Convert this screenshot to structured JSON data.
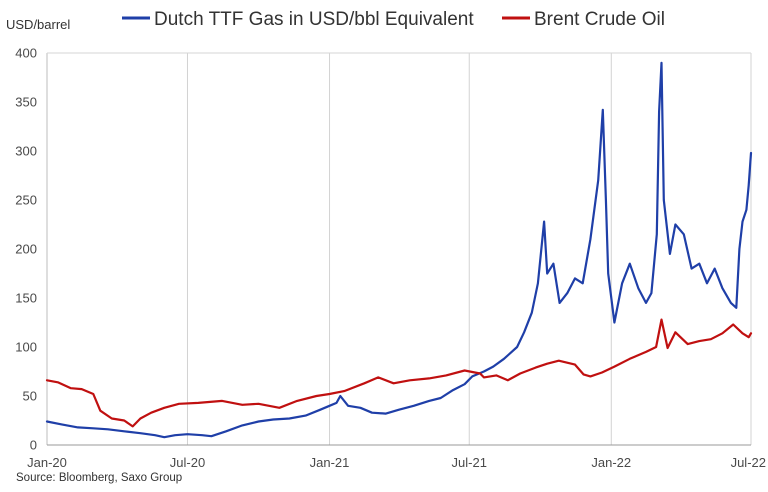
{
  "chart_data": {
    "type": "line",
    "ylabel": "USD/barrel",
    "source": "Source: Bloomberg, Saxo Group",
    "ylim": [
      0,
      400
    ],
    "yticks": [
      0,
      50,
      100,
      150,
      200,
      250,
      300,
      350,
      400
    ],
    "xrange": [
      "2020-01-01",
      "2022-07-01"
    ],
    "xticks": [
      {
        "date": "2020-01-01",
        "label": "Jan-20"
      },
      {
        "date": "2020-07-01",
        "label": "Jul-20"
      },
      {
        "date": "2021-01-01",
        "label": "Jan-21"
      },
      {
        "date": "2021-07-01",
        "label": "Jul-21"
      },
      {
        "date": "2022-01-01",
        "label": "Jan-22"
      },
      {
        "date": "2022-07-01",
        "label": "Jul-22"
      }
    ],
    "grid": {
      "vertical": true,
      "horizontal": false
    },
    "legend_position": "top",
    "series": [
      {
        "name": "Dutch TTF Gas in USD/bbl Equivalent",
        "color": "#1f3fa8",
        "points": [
          [
            "2020-01-01",
            24
          ],
          [
            "2020-01-20",
            21
          ],
          [
            "2020-02-10",
            18
          ],
          [
            "2020-03-01",
            17
          ],
          [
            "2020-03-20",
            16
          ],
          [
            "2020-04-10",
            14
          ],
          [
            "2020-05-01",
            12
          ],
          [
            "2020-05-20",
            10
          ],
          [
            "2020-06-01",
            8
          ],
          [
            "2020-06-15",
            10
          ],
          [
            "2020-07-01",
            11
          ],
          [
            "2020-07-20",
            10
          ],
          [
            "2020-08-01",
            9
          ],
          [
            "2020-08-20",
            14
          ],
          [
            "2020-09-10",
            20
          ],
          [
            "2020-10-01",
            24
          ],
          [
            "2020-10-20",
            26
          ],
          [
            "2020-11-10",
            27
          ],
          [
            "2020-12-01",
            30
          ],
          [
            "2020-12-20",
            36
          ],
          [
            "2021-01-01",
            40
          ],
          [
            "2021-01-10",
            43
          ],
          [
            "2021-01-15",
            50
          ],
          [
            "2021-01-25",
            40
          ],
          [
            "2021-02-10",
            38
          ],
          [
            "2021-02-25",
            33
          ],
          [
            "2021-03-15",
            32
          ],
          [
            "2021-04-01",
            36
          ],
          [
            "2021-04-20",
            40
          ],
          [
            "2021-05-10",
            45
          ],
          [
            "2021-05-25",
            48
          ],
          [
            "2021-06-10",
            56
          ],
          [
            "2021-06-25",
            62
          ],
          [
            "2021-07-05",
            70
          ],
          [
            "2021-07-20",
            75
          ],
          [
            "2021-08-01",
            80
          ],
          [
            "2021-08-15",
            88
          ],
          [
            "2021-09-01",
            100
          ],
          [
            "2021-09-10",
            115
          ],
          [
            "2021-09-20",
            135
          ],
          [
            "2021-09-28",
            165
          ],
          [
            "2021-10-06",
            228
          ],
          [
            "2021-10-10",
            175
          ],
          [
            "2021-10-18",
            185
          ],
          [
            "2021-10-26",
            145
          ],
          [
            "2021-11-05",
            155
          ],
          [
            "2021-11-15",
            170
          ],
          [
            "2021-11-25",
            165
          ],
          [
            "2021-12-05",
            210
          ],
          [
            "2021-12-15",
            270
          ],
          [
            "2021-12-21",
            342
          ],
          [
            "2021-12-25",
            250
          ],
          [
            "2021-12-28",
            175
          ],
          [
            "2022-01-05",
            125
          ],
          [
            "2022-01-15",
            165
          ],
          [
            "2022-01-25",
            185
          ],
          [
            "2022-02-05",
            160
          ],
          [
            "2022-02-15",
            145
          ],
          [
            "2022-02-22",
            155
          ],
          [
            "2022-03-01",
            215
          ],
          [
            "2022-03-04",
            340
          ],
          [
            "2022-03-07",
            390
          ],
          [
            "2022-03-10",
            250
          ],
          [
            "2022-03-18",
            195
          ],
          [
            "2022-03-25",
            225
          ],
          [
            "2022-04-05",
            215
          ],
          [
            "2022-04-15",
            180
          ],
          [
            "2022-04-25",
            185
          ],
          [
            "2022-05-05",
            165
          ],
          [
            "2022-05-15",
            180
          ],
          [
            "2022-05-25",
            160
          ],
          [
            "2022-06-05",
            145
          ],
          [
            "2022-06-12",
            140
          ],
          [
            "2022-06-16",
            200
          ],
          [
            "2022-06-20",
            228
          ],
          [
            "2022-06-25",
            240
          ],
          [
            "2022-06-28",
            265
          ],
          [
            "2022-07-01",
            298
          ]
        ]
      },
      {
        "name": "Brent Crude Oil",
        "color": "#c01010",
        "points": [
          [
            "2020-01-01",
            66
          ],
          [
            "2020-01-15",
            64
          ],
          [
            "2020-02-01",
            58
          ],
          [
            "2020-02-15",
            57
          ],
          [
            "2020-03-01",
            52
          ],
          [
            "2020-03-10",
            35
          ],
          [
            "2020-03-25",
            27
          ],
          [
            "2020-04-10",
            25
          ],
          [
            "2020-04-21",
            19
          ],
          [
            "2020-05-01",
            27
          ],
          [
            "2020-05-15",
            33
          ],
          [
            "2020-06-01",
            38
          ],
          [
            "2020-06-20",
            42
          ],
          [
            "2020-07-15",
            43
          ],
          [
            "2020-08-15",
            45
          ],
          [
            "2020-09-10",
            41
          ],
          [
            "2020-10-01",
            42
          ],
          [
            "2020-10-28",
            38
          ],
          [
            "2020-11-20",
            45
          ],
          [
            "2020-12-15",
            50
          ],
          [
            "2021-01-01",
            52
          ],
          [
            "2021-01-20",
            55
          ],
          [
            "2021-02-15",
            63
          ],
          [
            "2021-03-05",
            69
          ],
          [
            "2021-03-25",
            63
          ],
          [
            "2021-04-15",
            66
          ],
          [
            "2021-05-10",
            68
          ],
          [
            "2021-06-01",
            71
          ],
          [
            "2021-06-25",
            76
          ],
          [
            "2021-07-15",
            73
          ],
          [
            "2021-07-20",
            69
          ],
          [
            "2021-08-05",
            71
          ],
          [
            "2021-08-20",
            66
          ],
          [
            "2021-09-05",
            73
          ],
          [
            "2021-09-25",
            79
          ],
          [
            "2021-10-10",
            83
          ],
          [
            "2021-10-25",
            86
          ],
          [
            "2021-11-15",
            82
          ],
          [
            "2021-11-26",
            72
          ],
          [
            "2021-12-05",
            70
          ],
          [
            "2021-12-20",
            74
          ],
          [
            "2022-01-05",
            80
          ],
          [
            "2022-01-25",
            88
          ],
          [
            "2022-02-15",
            95
          ],
          [
            "2022-02-28",
            100
          ],
          [
            "2022-03-07",
            128
          ],
          [
            "2022-03-15",
            99
          ],
          [
            "2022-03-25",
            115
          ],
          [
            "2022-04-10",
            103
          ],
          [
            "2022-04-25",
            106
          ],
          [
            "2022-05-10",
            108
          ],
          [
            "2022-05-25",
            114
          ],
          [
            "2022-06-08",
            123
          ],
          [
            "2022-06-20",
            114
          ],
          [
            "2022-06-28",
            110
          ],
          [
            "2022-07-01",
            114
          ]
        ]
      }
    ]
  }
}
